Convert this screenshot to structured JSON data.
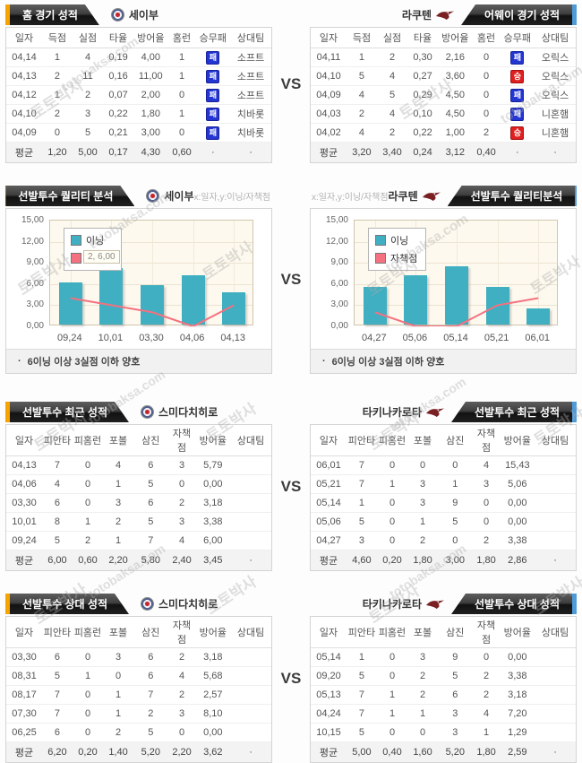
{
  "vs_label": "VS",
  "axis_hint": "x:일자,y:이닝/자책점",
  "chart_note_bullet": "·",
  "chart_note": "6이닝 이상 3실점 이하 양호",
  "watermark_kr": "토토박사",
  "watermark_en": "totobaksa.com",
  "colors": {
    "accent_orange": "#f7a400",
    "accent_blue": "#4d9bd9",
    "bar_teal": "#3fafc1",
    "line_pink": "#f4717f",
    "badge_win_red": "#e01f1f",
    "badge_loss_blue": "#2436d2"
  },
  "sections": {
    "s1": {
      "left": {
        "banner": "홈 경기 성적",
        "team": "세이부",
        "table": {
          "columns": [
            "일자",
            "득점",
            "실점",
            "타율",
            "방어율",
            "홈런",
            "승무패",
            "상대팀"
          ],
          "rows": [
            [
              "04,14",
              "1",
              "4",
              "0,19",
              "4,00",
              "1",
              {
                "badge": "패",
                "result": "loss"
              },
              "소프트"
            ],
            [
              "04,13",
              "2",
              "11",
              "0,16",
              "11,00",
              "1",
              {
                "badge": "패",
                "result": "loss"
              },
              "소프트"
            ],
            [
              "04,12",
              "1",
              "2",
              "0,07",
              "2,00",
              "0",
              {
                "badge": "패",
                "result": "loss"
              },
              "소프트"
            ],
            [
              "04,10",
              "2",
              "3",
              "0,22",
              "1,80",
              "1",
              {
                "badge": "패",
                "result": "loss"
              },
              "치바롯"
            ],
            [
              "04,09",
              "0",
              "5",
              "0,21",
              "3,00",
              "0",
              {
                "badge": "패",
                "result": "loss"
              },
              "치바롯"
            ]
          ],
          "avg": [
            "평균",
            "1,20",
            "5,00",
            "0,17",
            "4,30",
            "0,60",
            "·",
            "·"
          ]
        }
      },
      "right": {
        "banner": "어웨이 경기 성적",
        "team": "라쿠텐",
        "table": {
          "columns": [
            "일자",
            "득점",
            "실점",
            "타율",
            "방어율",
            "홈런",
            "승무패",
            "상대팀"
          ],
          "rows": [
            [
              "04,11",
              "1",
              "2",
              "0,30",
              "2,16",
              "0",
              {
                "badge": "패",
                "result": "loss"
              },
              "오릭스"
            ],
            [
              "04,10",
              "5",
              "4",
              "0,27",
              "3,60",
              "0",
              {
                "badge": "승",
                "result": "win"
              },
              "오릭스"
            ],
            [
              "04,09",
              "4",
              "5",
              "0,29",
              "4,50",
              "0",
              {
                "badge": "패",
                "result": "loss"
              },
              "오릭스"
            ],
            [
              "04,03",
              "2",
              "4",
              "0,10",
              "4,50",
              "0",
              {
                "badge": "패",
                "result": "loss"
              },
              "니혼햄"
            ],
            [
              "04,02",
              "4",
              "2",
              "0,22",
              "1,00",
              "2",
              {
                "badge": "승",
                "result": "win"
              },
              "니혼햄"
            ]
          ],
          "avg": [
            "평균",
            "3,20",
            "3,40",
            "0,24",
            "3,12",
            "0,40",
            "·",
            "·"
          ]
        }
      }
    },
    "s2": {
      "left": {
        "banner": "선발투수 퀄리티 분석",
        "team": "세이부"
      },
      "right": {
        "banner": "선발투수 퀄리티분석",
        "team": "라쿠텐"
      }
    },
    "s3": {
      "left": {
        "banner": "선발투수 최근 성적",
        "team": "스미다치히로",
        "table": {
          "columns": [
            "일자",
            "피안타",
            "피홈런",
            "포볼",
            "삼진",
            "자책점",
            "방어율",
            "상대팀"
          ],
          "rows": [
            [
              "04,13",
              "7",
              "0",
              "4",
              "6",
              "3",
              "5,79",
              ""
            ],
            [
              "04,06",
              "4",
              "0",
              "1",
              "5",
              "0",
              "0,00",
              ""
            ],
            [
              "03,30",
              "6",
              "0",
              "3",
              "6",
              "2",
              "3,18",
              ""
            ],
            [
              "10,01",
              "8",
              "1",
              "2",
              "5",
              "3",
              "3,38",
              ""
            ],
            [
              "09,24",
              "5",
              "2",
              "1",
              "7",
              "4",
              "6,00",
              ""
            ]
          ],
          "avg": [
            "평균",
            "6,00",
            "0,60",
            "2,20",
            "5,80",
            "2,40",
            "3,45",
            "·"
          ]
        }
      },
      "right": {
        "banner": "선발투수 최근 성적",
        "team": "타키나카로타",
        "table": {
          "columns": [
            "일자",
            "피안타",
            "피홈런",
            "포볼",
            "삼진",
            "자책점",
            "방어율",
            "상대팀"
          ],
          "rows": [
            [
              "06,01",
              "7",
              "0",
              "0",
              "0",
              "4",
              "15,43",
              ""
            ],
            [
              "05,21",
              "7",
              "1",
              "3",
              "1",
              "3",
              "5,06",
              ""
            ],
            [
              "05,14",
              "1",
              "0",
              "3",
              "9",
              "0",
              "0,00",
              ""
            ],
            [
              "05,06",
              "5",
              "0",
              "1",
              "5",
              "0",
              "0,00",
              ""
            ],
            [
              "04,27",
              "3",
              "0",
              "2",
              "0",
              "2",
              "3,38",
              ""
            ]
          ],
          "avg": [
            "평균",
            "4,60",
            "0,20",
            "1,80",
            "3,00",
            "1,80",
            "2,86",
            "·"
          ]
        }
      }
    },
    "s4": {
      "left": {
        "banner": "선발투수 상대 성적",
        "team": "스미다치히로",
        "table": {
          "columns": [
            "일자",
            "피안타",
            "피홈런",
            "포볼",
            "삼진",
            "자책점",
            "방어율",
            "상대팀"
          ],
          "rows": [
            [
              "03,30",
              "6",
              "0",
              "3",
              "6",
              "2",
              "3,18",
              ""
            ],
            [
              "08,31",
              "5",
              "1",
              "0",
              "6",
              "4",
              "5,68",
              ""
            ],
            [
              "08,17",
              "7",
              "0",
              "1",
              "7",
              "2",
              "2,57",
              ""
            ],
            [
              "07,30",
              "7",
              "0",
              "1",
              "2",
              "3",
              "8,10",
              ""
            ],
            [
              "06,25",
              "6",
              "0",
              "2",
              "5",
              "0",
              "0,00",
              ""
            ]
          ],
          "avg": [
            "평균",
            "6,20",
            "0,20",
            "1,40",
            "5,20",
            "2,20",
            "3,62",
            "·"
          ]
        }
      },
      "right": {
        "banner": "선발투수 상대 성적",
        "team": "타키나카로타",
        "table": {
          "columns": [
            "일자",
            "피안타",
            "피홈런",
            "포볼",
            "삼진",
            "자책점",
            "방어율",
            "상대팀"
          ],
          "rows": [
            [
              "05,14",
              "1",
              "0",
              "3",
              "9",
              "0",
              "0,00",
              ""
            ],
            [
              "09,20",
              "5",
              "0",
              "2",
              "5",
              "2",
              "3,38",
              ""
            ],
            [
              "05,13",
              "7",
              "1",
              "2",
              "6",
              "2",
              "3,18",
              ""
            ],
            [
              "04,24",
              "7",
              "1",
              "1",
              "3",
              "4",
              "7,20",
              ""
            ],
            [
              "10,15",
              "5",
              "0",
              "0",
              "3",
              "1",
              "1,29",
              ""
            ]
          ],
          "avg": [
            "평균",
            "5,00",
            "0,40",
            "1,60",
            "5,20",
            "1,80",
            "2,59",
            "·"
          ]
        }
      }
    }
  },
  "chart_data": [
    {
      "type": "bar+line",
      "title": "선발투수 퀄리티 분석 - 세이부",
      "xlabel": "일자",
      "ylabel": "이닝/자책점",
      "categories": [
        "09,24",
        "10,01",
        "03,30",
        "04,06",
        "04,13"
      ],
      "series": [
        {
          "name": "이닝",
          "type": "bar",
          "color": "#3fafc1",
          "values": [
            6.0,
            8.0,
            5.6,
            7.0,
            4.6
          ]
        },
        {
          "name": "자책점",
          "type": "line",
          "color": "#f4717f",
          "values": [
            4.0,
            3.0,
            2.0,
            0.0,
            3.0
          ]
        }
      ],
      "ylim": [
        0,
        15
      ],
      "yticks": [
        "15,00",
        "12,00",
        "9,00",
        "6,00",
        "3,00",
        "0,00"
      ],
      "legend_position": "top-left",
      "grid": true,
      "tooltip": "2, 6,00"
    },
    {
      "type": "bar+line",
      "title": "선발투수 퀄리티분석 - 라쿠텐",
      "xlabel": "일자",
      "ylabel": "이닝/자책점",
      "categories": [
        "04,27",
        "05,06",
        "05,14",
        "05,21",
        "06,01"
      ],
      "series": [
        {
          "name": "이닝",
          "type": "bar",
          "color": "#3fafc1",
          "values": [
            5.3,
            7.0,
            8.3,
            5.3,
            2.3
          ]
        },
        {
          "name": "자책점",
          "type": "line",
          "color": "#f4717f",
          "values": [
            2.0,
            0.0,
            0.0,
            3.0,
            4.0
          ]
        }
      ],
      "ylim": [
        0,
        15
      ],
      "yticks": [
        "15,00",
        "12,00",
        "9,00",
        "6,00",
        "3,00",
        "0,00"
      ],
      "legend_position": "top-left",
      "grid": true
    }
  ]
}
